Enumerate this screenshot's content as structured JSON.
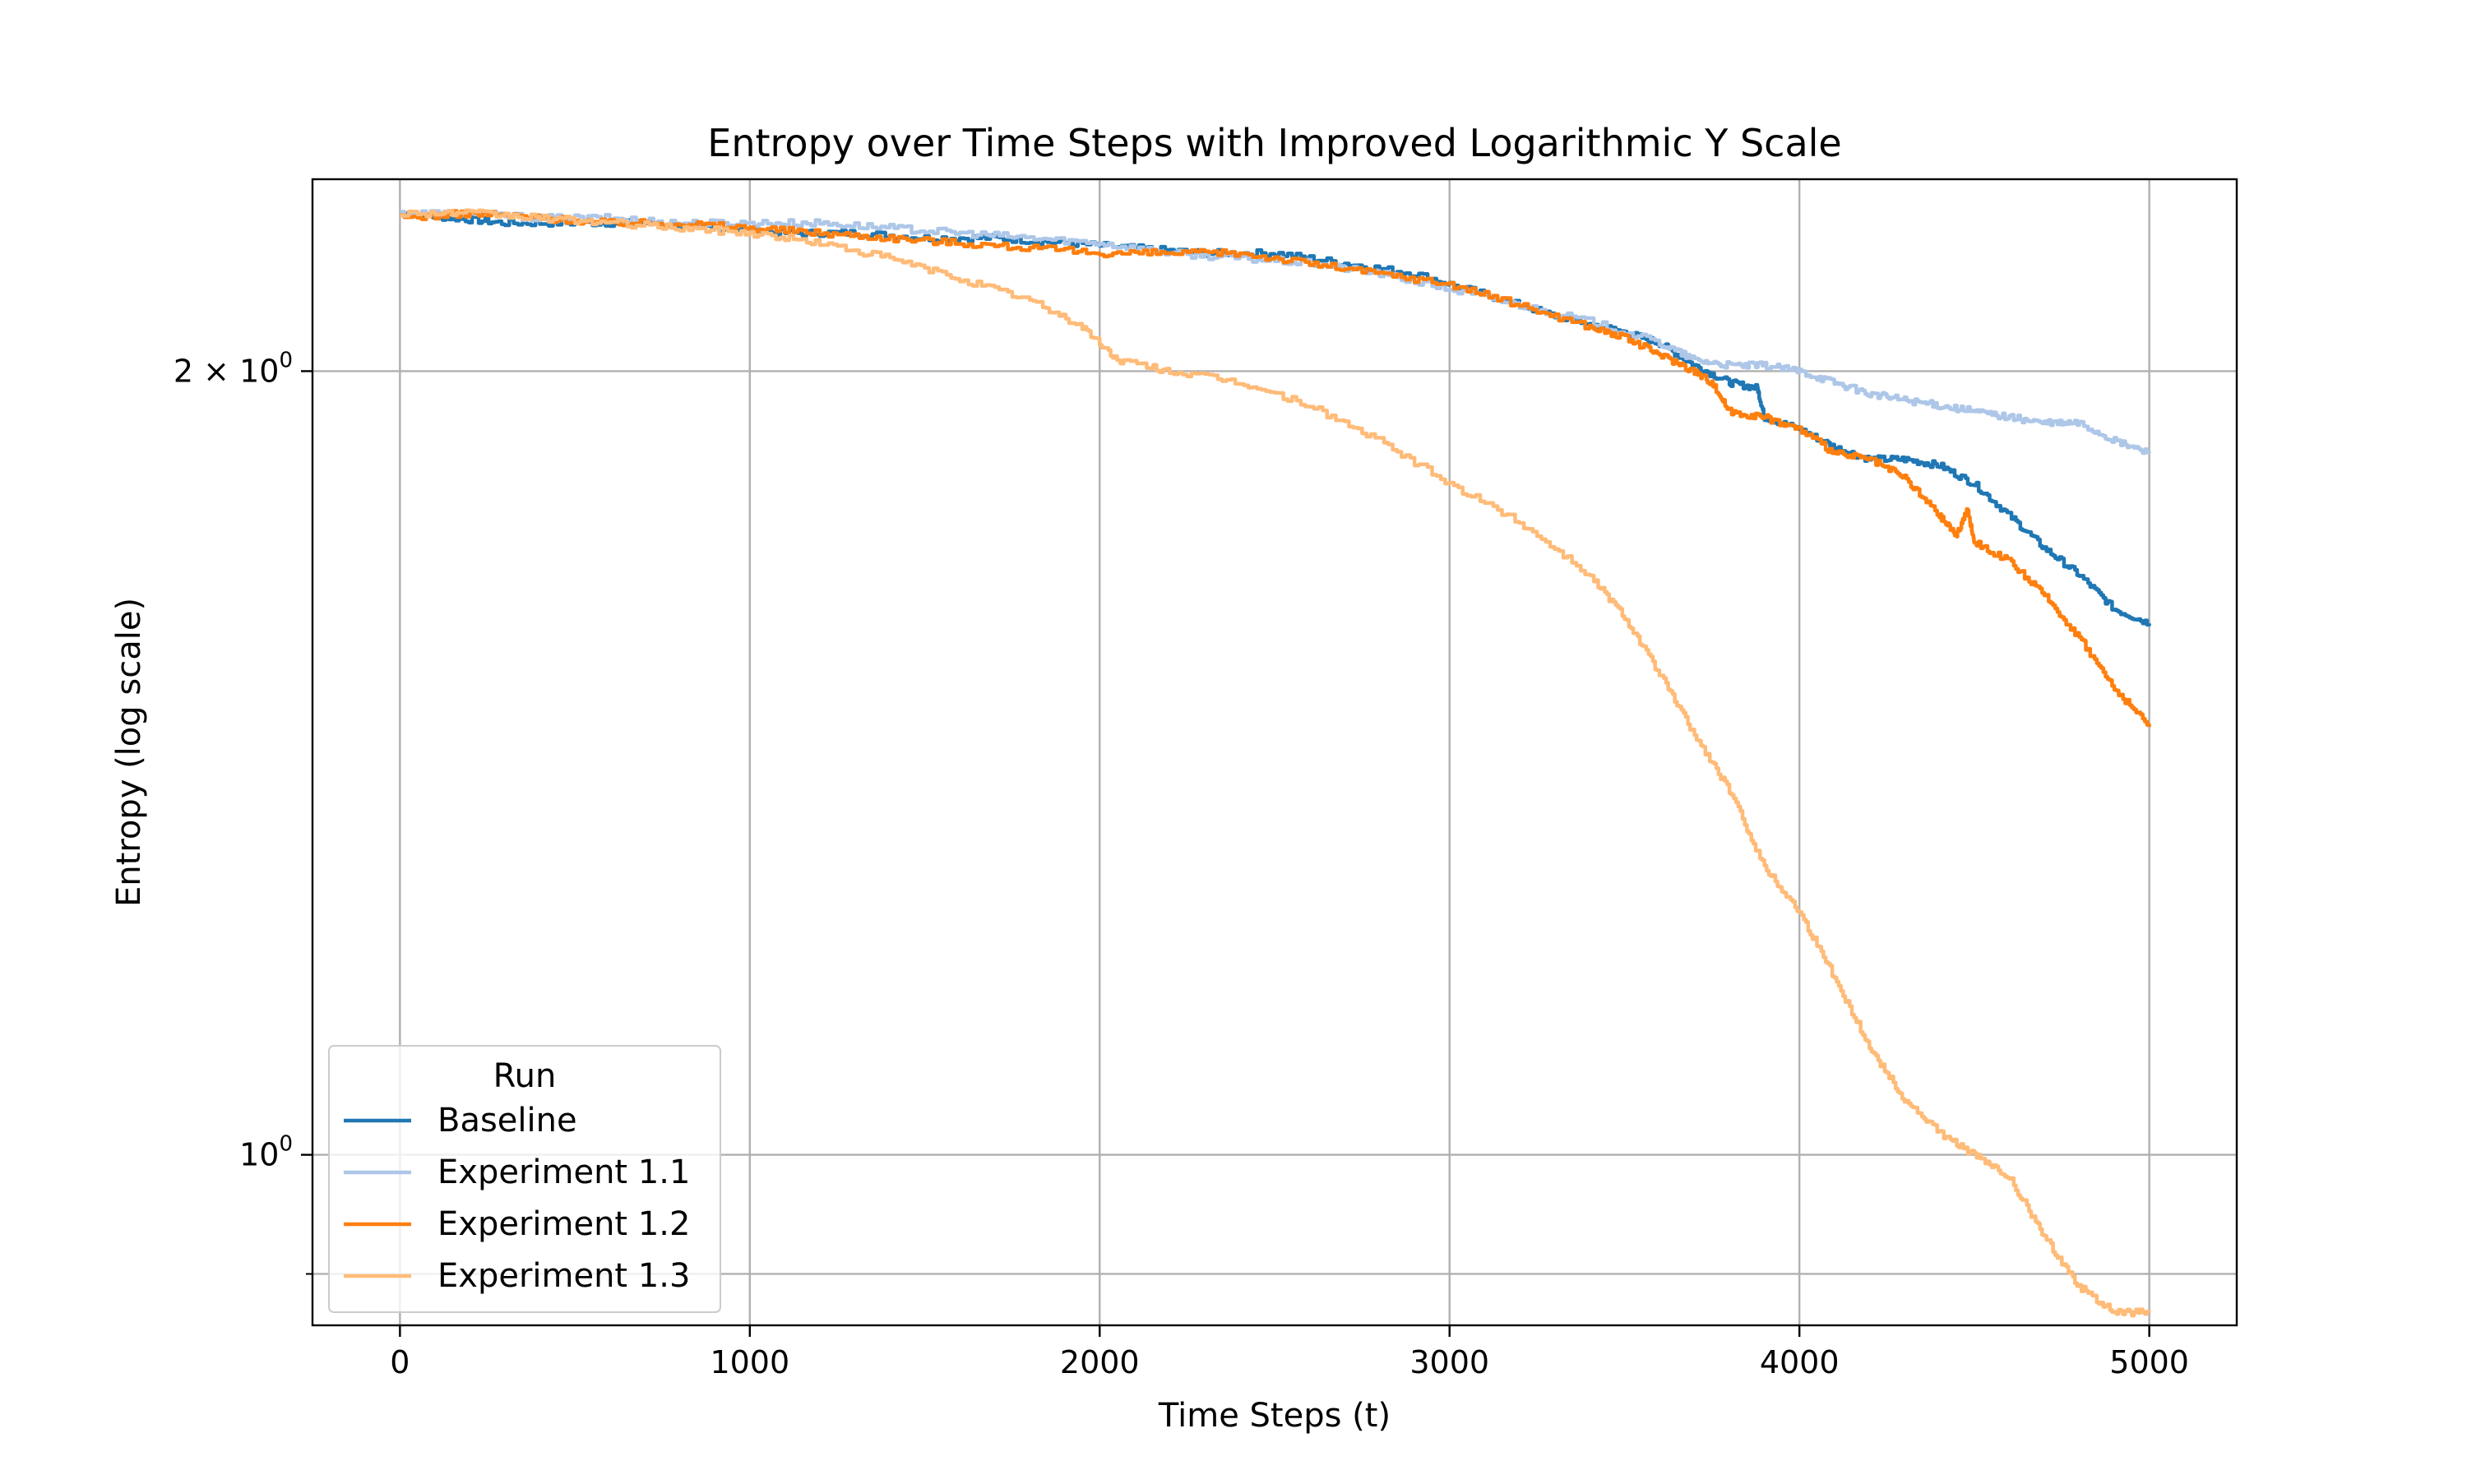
{
  "chart_data": {
    "type": "line",
    "title": "Entropy over Time Steps with Improved Logarithmic Y Scale",
    "xlabel": "Time Steps (t)",
    "ylabel": "Entropy (log scale)",
    "xlim": [
      -250,
      5250
    ],
    "ylim": [
      0.86,
      2.37
    ],
    "yscale": "log",
    "x_ticks": [
      0,
      1000,
      2000,
      3000,
      4000,
      5000
    ],
    "x_tick_labels": [
      "0",
      "1000",
      "2000",
      "3000",
      "4000",
      "5000"
    ],
    "y_major_ticks": [
      {
        "value": 2.0,
        "base": "2 × 10",
        "exp": "0"
      },
      {
        "value": 1.0,
        "base": "10",
        "exp": "0"
      }
    ],
    "y_minor_ticks": [
      0.9
    ],
    "grid": true,
    "legend": {
      "title": "Run",
      "placement": "lower-left"
    },
    "series": [
      {
        "name": "Baseline",
        "color": "#1f77b4",
        "points": [
          [
            0,
            2.3
          ],
          [
            150,
            2.29
          ],
          [
            300,
            2.28
          ],
          [
            500,
            2.28
          ],
          [
            700,
            2.28
          ],
          [
            900,
            2.27
          ],
          [
            1100,
            2.26
          ],
          [
            1300,
            2.26
          ],
          [
            1500,
            2.25
          ],
          [
            1700,
            2.25
          ],
          [
            1900,
            2.24
          ],
          [
            2100,
            2.23
          ],
          [
            2300,
            2.22
          ],
          [
            2500,
            2.22
          ],
          [
            2700,
            2.2
          ],
          [
            2900,
            2.18
          ],
          [
            3100,
            2.14
          ],
          [
            3300,
            2.1
          ],
          [
            3500,
            2.07
          ],
          [
            3600,
            2.05
          ],
          [
            3700,
            2.01
          ],
          [
            3800,
            1.98
          ],
          [
            3880,
            1.97
          ],
          [
            3900,
            1.92
          ],
          [
            4000,
            1.9
          ],
          [
            4100,
            1.87
          ],
          [
            4200,
            1.85
          ],
          [
            4300,
            1.85
          ],
          [
            4400,
            1.84
          ],
          [
            4500,
            1.81
          ],
          [
            4600,
            1.76
          ],
          [
            4700,
            1.71
          ],
          [
            4800,
            1.67
          ],
          [
            4900,
            1.62
          ],
          [
            5000,
            1.6
          ]
        ]
      },
      {
        "name": "Experiment 1.1",
        "color": "#aec7e8",
        "points": [
          [
            0,
            2.3
          ],
          [
            200,
            2.3
          ],
          [
            400,
            2.29
          ],
          [
            600,
            2.29
          ],
          [
            800,
            2.28
          ],
          [
            1000,
            2.28
          ],
          [
            1200,
            2.28
          ],
          [
            1400,
            2.27
          ],
          [
            1600,
            2.26
          ],
          [
            1800,
            2.25
          ],
          [
            2000,
            2.24
          ],
          [
            2200,
            2.22
          ],
          [
            2400,
            2.21
          ],
          [
            2600,
            2.2
          ],
          [
            2800,
            2.18
          ],
          [
            3000,
            2.15
          ],
          [
            3200,
            2.12
          ],
          [
            3400,
            2.09
          ],
          [
            3600,
            2.05
          ],
          [
            3700,
            2.02
          ],
          [
            3800,
            2.01
          ],
          [
            3900,
            2.01
          ],
          [
            4000,
            2.0
          ],
          [
            4100,
            1.98
          ],
          [
            4200,
            1.96
          ],
          [
            4300,
            1.95
          ],
          [
            4400,
            1.94
          ],
          [
            4500,
            1.93
          ],
          [
            4600,
            1.92
          ],
          [
            4700,
            1.91
          ],
          [
            4800,
            1.91
          ],
          [
            4900,
            1.88
          ],
          [
            5000,
            1.86
          ]
        ]
      },
      {
        "name": "Experiment 1.2",
        "color": "#ff7f0e",
        "points": [
          [
            0,
            2.29
          ],
          [
            200,
            2.3
          ],
          [
            400,
            2.29
          ],
          [
            600,
            2.28
          ],
          [
            800,
            2.28
          ],
          [
            1000,
            2.27
          ],
          [
            1200,
            2.26
          ],
          [
            1400,
            2.25
          ],
          [
            1600,
            2.24
          ],
          [
            1800,
            2.23
          ],
          [
            2000,
            2.22
          ],
          [
            2200,
            2.22
          ],
          [
            2400,
            2.22
          ],
          [
            2600,
            2.2
          ],
          [
            2800,
            2.18
          ],
          [
            3000,
            2.16
          ],
          [
            3200,
            2.12
          ],
          [
            3400,
            2.08
          ],
          [
            3500,
            2.06
          ],
          [
            3600,
            2.03
          ],
          [
            3700,
            2.0
          ],
          [
            3750,
            1.98
          ],
          [
            3800,
            1.93
          ],
          [
            3900,
            1.92
          ],
          [
            4000,
            1.9
          ],
          [
            4100,
            1.86
          ],
          [
            4200,
            1.85
          ],
          [
            4300,
            1.82
          ],
          [
            4400,
            1.76
          ],
          [
            4450,
            1.73
          ],
          [
            4480,
            1.77
          ],
          [
            4500,
            1.72
          ],
          [
            4600,
            1.69
          ],
          [
            4700,
            1.64
          ],
          [
            4800,
            1.58
          ],
          [
            4900,
            1.51
          ],
          [
            5000,
            1.46
          ]
        ]
      },
      {
        "name": "Experiment 1.3",
        "color": "#ffbb78",
        "points": [
          [
            0,
            2.3
          ],
          [
            200,
            2.3
          ],
          [
            400,
            2.29
          ],
          [
            600,
            2.28
          ],
          [
            800,
            2.27
          ],
          [
            1000,
            2.26
          ],
          [
            1200,
            2.24
          ],
          [
            1400,
            2.21
          ],
          [
            1600,
            2.17
          ],
          [
            1800,
            2.13
          ],
          [
            1950,
            2.08
          ],
          [
            2050,
            2.02
          ],
          [
            2200,
            2.0
          ],
          [
            2400,
            1.98
          ],
          [
            2600,
            1.94
          ],
          [
            2800,
            1.88
          ],
          [
            3000,
            1.81
          ],
          [
            3200,
            1.75
          ],
          [
            3400,
            1.67
          ],
          [
            3500,
            1.61
          ],
          [
            3600,
            1.53
          ],
          [
            3700,
            1.45
          ],
          [
            3800,
            1.38
          ],
          [
            3900,
            1.29
          ],
          [
            4000,
            1.24
          ],
          [
            4100,
            1.17
          ],
          [
            4200,
            1.1
          ],
          [
            4300,
            1.05
          ],
          [
            4400,
            1.02
          ],
          [
            4500,
            1.0
          ],
          [
            4600,
            0.98
          ],
          [
            4700,
            0.93
          ],
          [
            4800,
            0.89
          ],
          [
            4900,
            0.87
          ],
          [
            5000,
            0.87
          ]
        ]
      }
    ]
  }
}
